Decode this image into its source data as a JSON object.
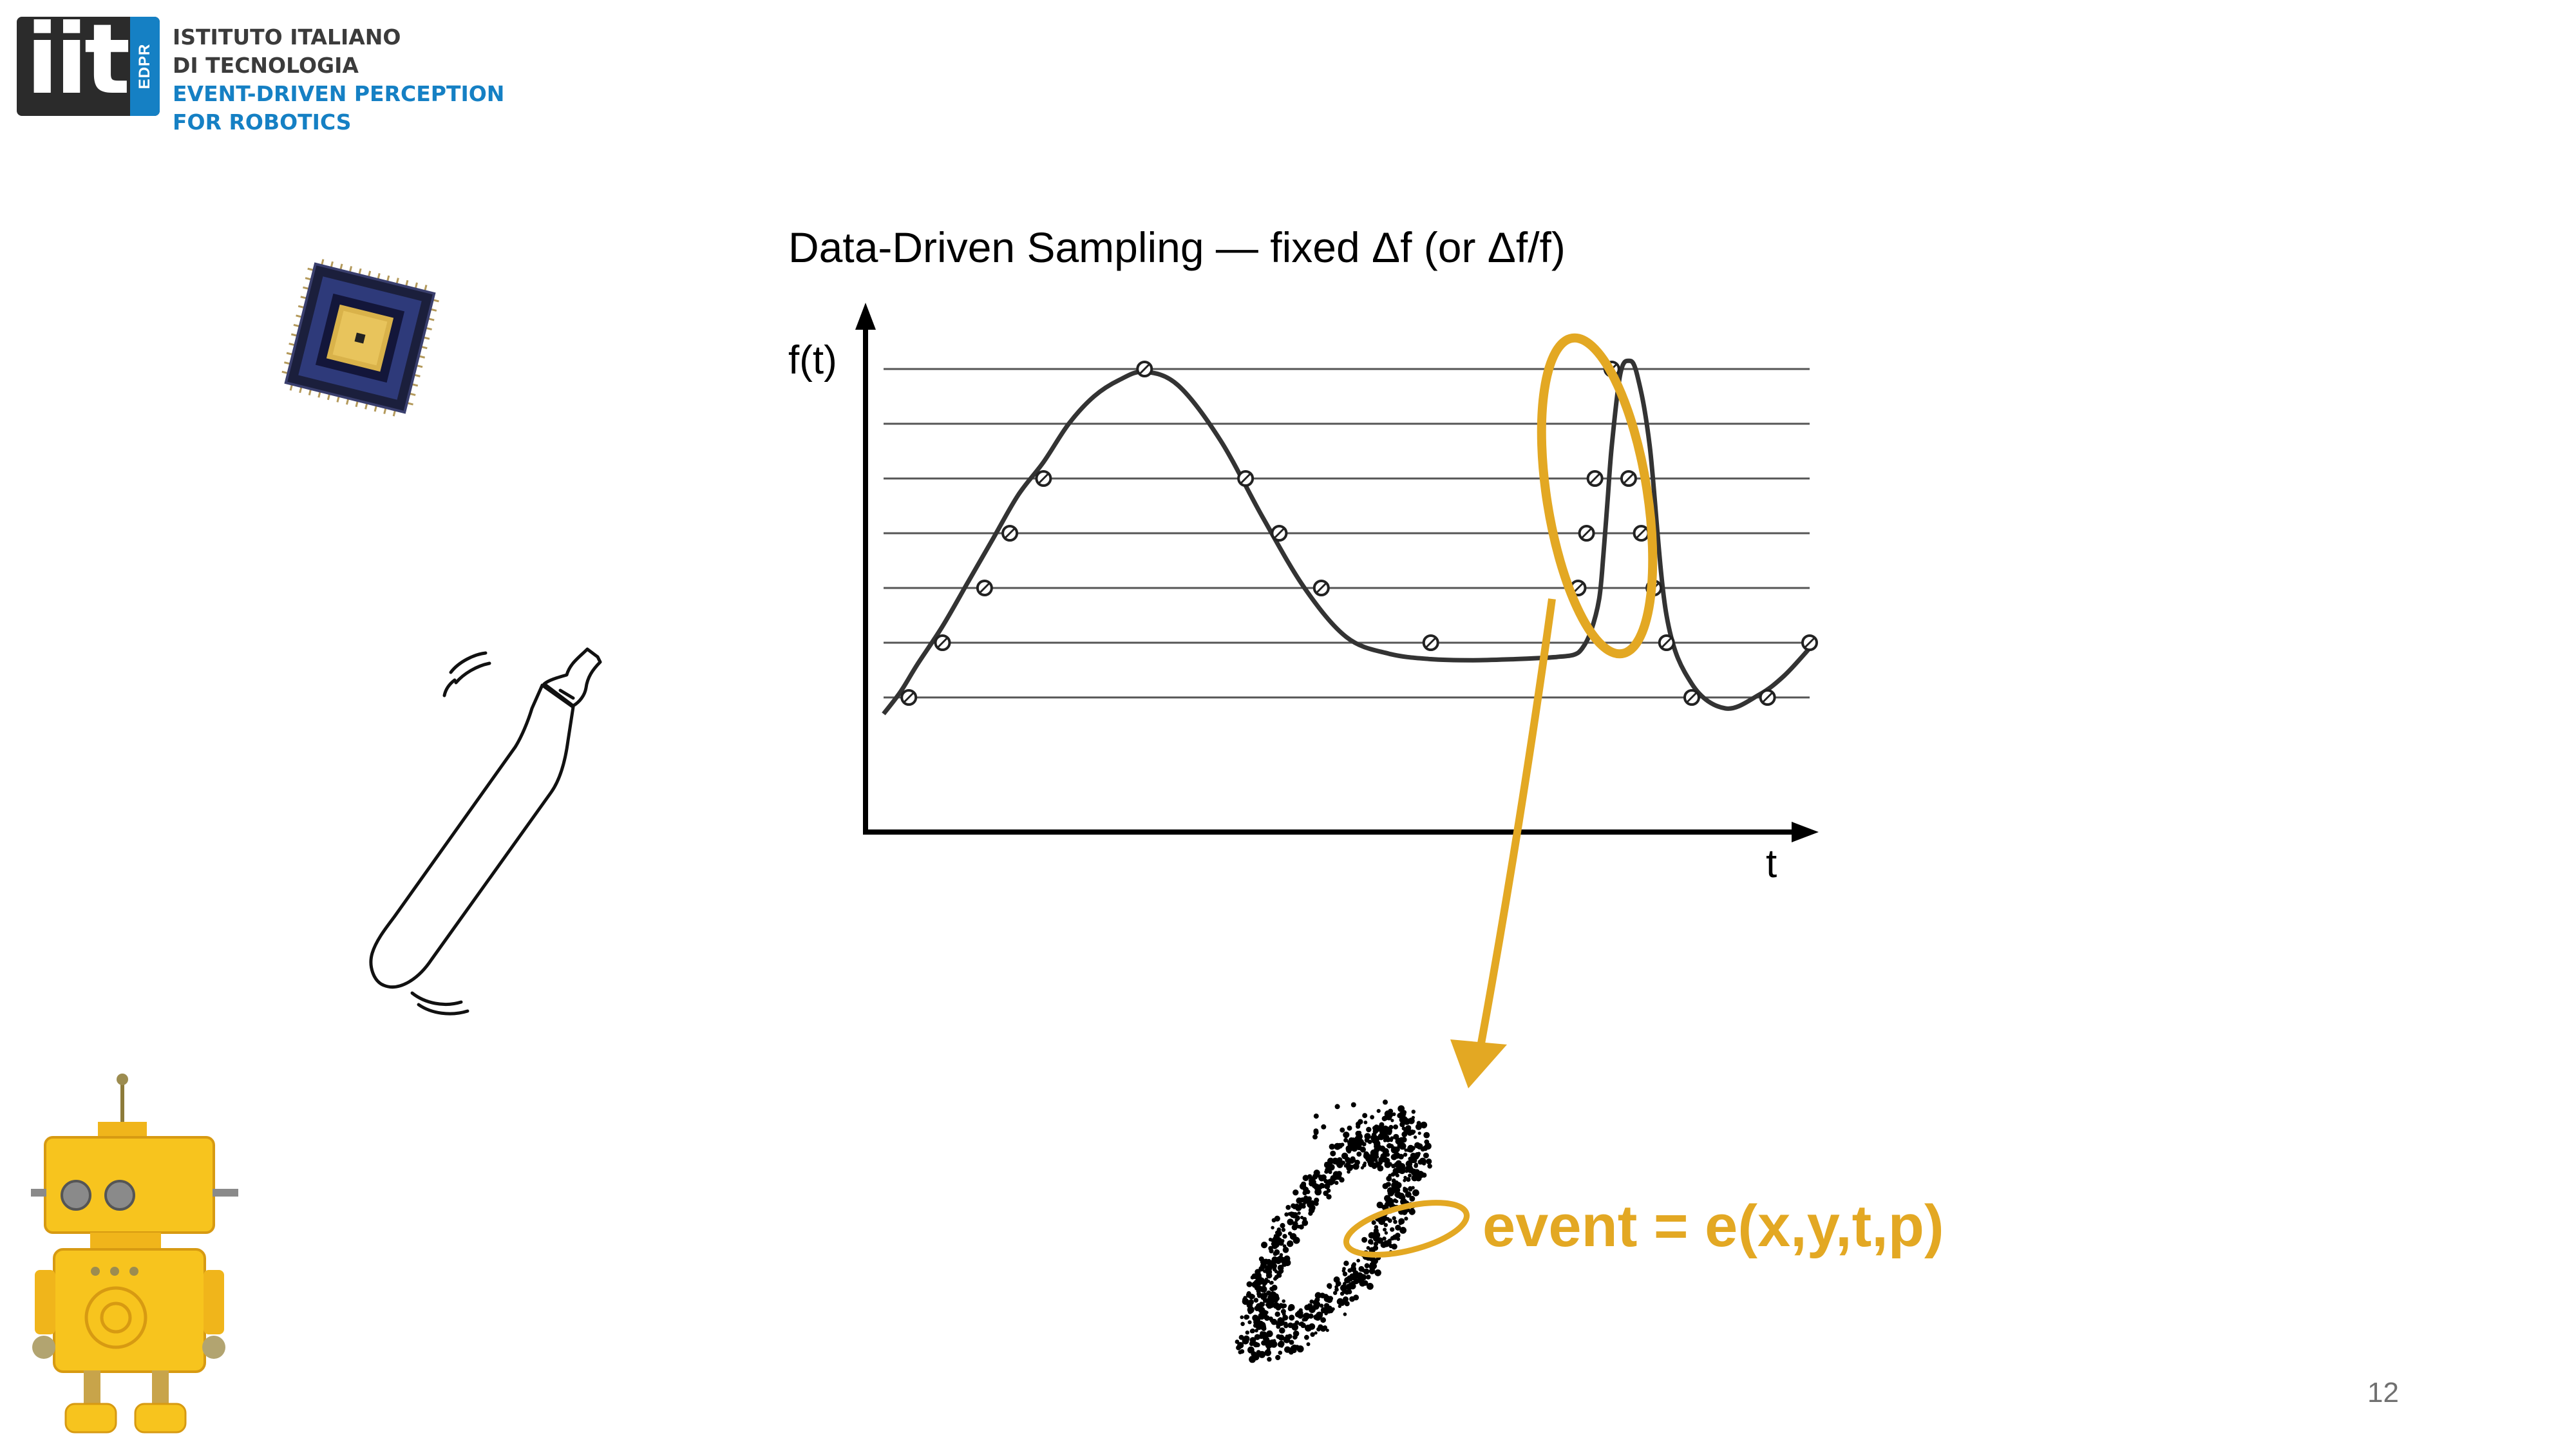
{
  "logo": {
    "mark": "iit",
    "badge": "EDPR",
    "lines": [
      "ISTITUTO ITALIANO",
      "DI TECNOLOGIA",
      "EVENT-DRIVEN PERCEPTION",
      "FOR ROBOTICS"
    ]
  },
  "slide": {
    "title": "Data-Driven Sampling — fixed Δf (or Δf/f)",
    "event_formula": "event = e(x,y,t,p)",
    "page_number": "12"
  },
  "chart_data": {
    "type": "line",
    "xlabel": "t",
    "ylabel": "f(t)",
    "threshold_levels": 7,
    "curve": {
      "t": [
        0.0,
        0.2,
        0.4,
        0.7,
        1.0,
        1.3,
        1.6,
        1.9,
        2.2,
        2.5,
        2.8,
        3.1,
        3.5,
        4.0,
        4.5,
        5.0,
        5.5,
        6.0,
        6.5,
        7.0,
        7.5,
        7.8,
        8.0,
        8.2,
        8.3,
        8.4,
        8.5,
        8.55,
        8.6,
        8.65,
        8.75,
        8.85,
        8.95,
        9.1,
        9.3,
        9.6,
        10.0,
        10.4,
        10.7,
        11.0
      ],
      "f": [
        -0.3,
        0.1,
        0.6,
        1.3,
        2.1,
        2.9,
        3.7,
        4.3,
        5.0,
        5.5,
        5.8,
        5.95,
        5.7,
        4.7,
        3.3,
        2.0,
        1.1,
        0.8,
        0.7,
        0.68,
        0.7,
        0.72,
        0.74,
        0.78,
        0.9,
        1.2,
        1.8,
        2.6,
        3.6,
        4.6,
        5.9,
        6.15,
        5.9,
        4.6,
        1.5,
        0.25,
        -0.2,
        0.05,
        0.4,
        0.9
      ]
    },
    "samples": {
      "t": [
        0.3,
        0.7,
        1.2,
        1.5,
        1.9,
        3.1,
        4.3,
        4.7,
        5.2,
        6.5,
        8.25,
        8.35,
        8.45,
        8.65,
        8.85,
        9.0,
        9.15,
        9.3,
        9.6,
        10.5,
        11.0
      ],
      "f": [
        0.0,
        1.0,
        2.0,
        3.0,
        4.0,
        6.0,
        4.0,
        3.0,
        2.0,
        1.0,
        2.0,
        3.0,
        4.0,
        6.0,
        4.0,
        3.0,
        2.0,
        1.0,
        0.0,
        0.0,
        1.0
      ]
    },
    "highlight_color": "#e3a823"
  },
  "illustrations": [
    {
      "name": "chip-icon"
    },
    {
      "name": "bottle-icon"
    },
    {
      "name": "robot-icon"
    },
    {
      "name": "event-cloud"
    }
  ]
}
